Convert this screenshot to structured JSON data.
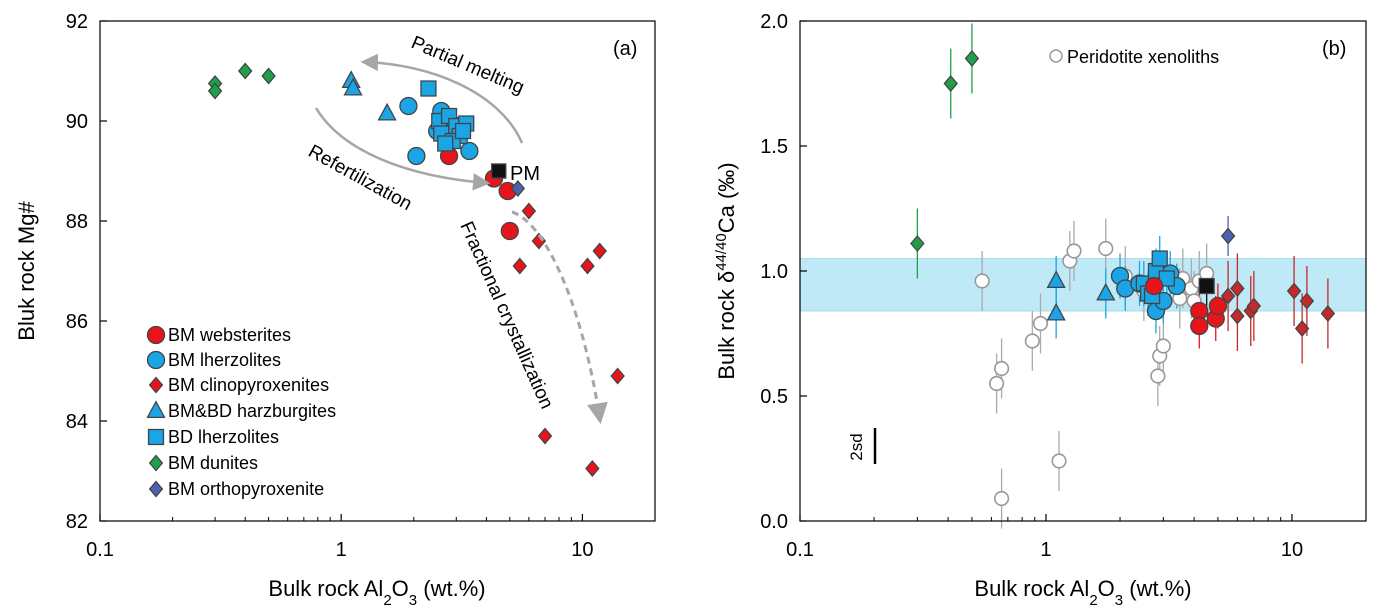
{
  "chart_data": [
    {
      "panel_label": "(a)",
      "type": "scatter",
      "xscale": "log",
      "xlim": [
        0.1,
        20
      ],
      "ylim": [
        82,
        92
      ],
      "xlabel_parts": [
        "Bulk rock Al",
        "2",
        "O",
        "3",
        " (wt.%)"
      ],
      "ylabel": "Bluk rock Mg#",
      "xticks": [
        0.1,
        1,
        10
      ],
      "xtick_labels": [
        "0.1",
        "1",
        "10"
      ],
      "yticks": [
        82,
        84,
        86,
        88,
        90,
        92
      ],
      "ytick_labels": [
        "82",
        "84",
        "86",
        "88",
        "90",
        "92"
      ],
      "legend_position": "bottom-left",
      "series": [
        {
          "name": "BM websterites",
          "marker": "circle",
          "color": "#e8141b",
          "points": [
            [
              2.8,
              89.3
            ],
            [
              4.3,
              88.85
            ],
            [
              4.9,
              88.6
            ],
            [
              5.0,
              87.8
            ]
          ]
        },
        {
          "name": "BM lherzolites",
          "marker": "circle",
          "color": "#1aa5e6",
          "points": [
            [
              1.9,
              90.3
            ],
            [
              2.05,
              89.3
            ],
            [
              2.6,
              90.2
            ],
            [
              3.4,
              89.4
            ],
            [
              2.5,
              89.8
            ],
            [
              3.0,
              89.9
            ],
            [
              2.8,
              89.6
            ]
          ]
        },
        {
          "name": "BM clinopyroxenites",
          "marker": "diamond",
          "color": "#e8141b",
          "points": [
            [
              6.0,
              88.2
            ],
            [
              6.6,
              87.6
            ],
            [
              5.5,
              87.1
            ],
            [
              10.5,
              87.1
            ],
            [
              11.8,
              87.4
            ],
            [
              14.0,
              84.9
            ],
            [
              7.0,
              83.7
            ],
            [
              11.0,
              83.05
            ]
          ]
        },
        {
          "name": "BM&BD harzburgites",
          "marker": "triangle",
          "color": "#1aa5e6",
          "points": [
            [
              1.1,
              90.8
            ],
            [
              1.12,
              90.65
            ],
            [
              1.55,
              90.15
            ]
          ]
        },
        {
          "name": "BD lherzolites",
          "marker": "square",
          "color": "#1aa5e6",
          "points": [
            [
              2.3,
              90.65
            ],
            [
              2.55,
              90.0
            ],
            [
              2.8,
              90.1
            ],
            [
              3.0,
              89.9
            ],
            [
              3.3,
              89.95
            ],
            [
              2.6,
              89.75
            ],
            [
              3.1,
              89.7
            ],
            [
              2.9,
              89.6
            ],
            [
              3.2,
              89.8
            ],
            [
              2.7,
              89.55
            ]
          ]
        },
        {
          "name": "BM dunites",
          "marker": "diamond",
          "color": "#1ea04a",
          "points": [
            [
              0.3,
              90.75
            ],
            [
              0.3,
              90.6
            ],
            [
              0.4,
              91.0
            ],
            [
              0.5,
              90.9
            ]
          ]
        },
        {
          "name": "BM orthopyroxenite",
          "marker": "diamond",
          "color": "#4a62b0",
          "points": [
            [
              5.4,
              88.65
            ]
          ]
        }
      ],
      "reference": {
        "label": "PM",
        "x": 4.5,
        "y": 89.0
      },
      "annotations": [
        "Partial melting",
        "Refertilization",
        "Fractional crystallization"
      ]
    },
    {
      "panel_label": "(b)",
      "type": "scatter",
      "xscale": "log",
      "xlim": [
        0.1,
        20
      ],
      "ylim": [
        0,
        2.0
      ],
      "xlabel_parts": [
        "Bulk rock Al",
        "2",
        "O",
        "3",
        " (wt.%)"
      ],
      "ylabel_parts": [
        "Bulk rock δ",
        "44/40",
        "Ca (‰)"
      ],
      "xticks": [
        0.1,
        1,
        10
      ],
      "xtick_labels": [
        "0.1",
        "1",
        "10"
      ],
      "yticks": [
        0,
        0.5,
        1.0,
        1.5,
        2.0
      ],
      "ytick_labels": [
        "0.0",
        "0.5",
        "1.0",
        "1.5",
        "2.0"
      ],
      "legend_position": "top-right",
      "band": {
        "y0": 0.84,
        "y1": 1.05,
        "color": "#bfe9f6"
      },
      "scale_bar": {
        "label": "2sd",
        "length": 0.15
      },
      "series": [
        {
          "name": "Peridotite xenoliths",
          "marker": "open-circle",
          "color": "#999999",
          "err": 0.12,
          "points": [
            [
              0.55,
              0.96
            ],
            [
              0.66,
              0.61
            ],
            [
              0.63,
              0.55
            ],
            [
              0.66,
              0.09
            ],
            [
              0.88,
              0.72
            ],
            [
              0.95,
              0.79
            ],
            [
              1.13,
              0.24
            ],
            [
              1.25,
              1.04
            ],
            [
              1.3,
              1.08
            ],
            [
              1.75,
              1.09
            ],
            [
              2.9,
              0.66
            ],
            [
              2.85,
              0.58
            ],
            [
              3.0,
              0.7
            ],
            [
              2.1,
              0.98
            ],
            [
              2.5,
              0.92
            ],
            [
              3.6,
              0.97
            ],
            [
              3.9,
              0.93
            ],
            [
              4.2,
              0.96
            ],
            [
              3.5,
              0.89
            ],
            [
              4.5,
              0.99
            ],
            [
              4.0,
              0.88
            ]
          ]
        },
        {
          "name": "",
          "marker": "diamond",
          "color": "#1ea04a",
          "err": 0.14,
          "points": [
            [
              0.3,
              1.11
            ],
            [
              0.41,
              1.75
            ],
            [
              0.5,
              1.85
            ]
          ]
        },
        {
          "name": "",
          "marker": "triangle",
          "color": "#1aa5e6",
          "err": 0.1,
          "points": [
            [
              1.1,
              0.96
            ],
            [
              1.1,
              0.83
            ],
            [
              1.75,
              0.91
            ]
          ]
        },
        {
          "name": "",
          "marker": "circle",
          "color": "#1aa5e6",
          "err": 0.09,
          "points": [
            [
              2.0,
              0.98
            ],
            [
              2.1,
              0.93
            ],
            [
              2.4,
              0.95
            ],
            [
              2.7,
              0.93
            ],
            [
              3.2,
              0.99
            ],
            [
              3.4,
              0.94
            ],
            [
              2.8,
              0.84
            ],
            [
              3.0,
              0.88
            ]
          ]
        },
        {
          "name": "",
          "marker": "square",
          "color": "#1aa5e6",
          "err": 0.09,
          "points": [
            [
              2.5,
              0.95
            ],
            [
              2.6,
              0.91
            ],
            [
              2.8,
              1.0
            ],
            [
              2.9,
              1.05
            ],
            [
              3.1,
              0.97
            ],
            [
              2.7,
              0.9
            ]
          ]
        },
        {
          "name": "",
          "marker": "circle",
          "color": "#e8141b",
          "err": 0.09,
          "points": [
            [
              2.75,
              0.94
            ],
            [
              4.2,
              0.84
            ],
            [
              4.2,
              0.78
            ],
            [
              4.9,
              0.81
            ],
            [
              5.0,
              0.86
            ]
          ]
        },
        {
          "name": "",
          "marker": "diamond",
          "color": "#c42a2a",
          "err": 0.14,
          "points": [
            [
              5.5,
              0.9
            ],
            [
              6.0,
              0.93
            ],
            [
              6.0,
              0.82
            ],
            [
              6.8,
              0.84
            ],
            [
              7.0,
              0.86
            ],
            [
              10.2,
              0.92
            ],
            [
              11.0,
              0.77
            ],
            [
              11.5,
              0.88
            ],
            [
              14.0,
              0.83
            ]
          ]
        },
        {
          "name": "",
          "marker": "diamond",
          "color": "#4a62b0",
          "err": 0.08,
          "points": [
            [
              5.5,
              1.14
            ]
          ]
        },
        {
          "name": "",
          "marker": "square",
          "color": "#111111",
          "err": 0.08,
          "points": [
            [
              4.5,
              0.94
            ]
          ]
        }
      ]
    }
  ]
}
